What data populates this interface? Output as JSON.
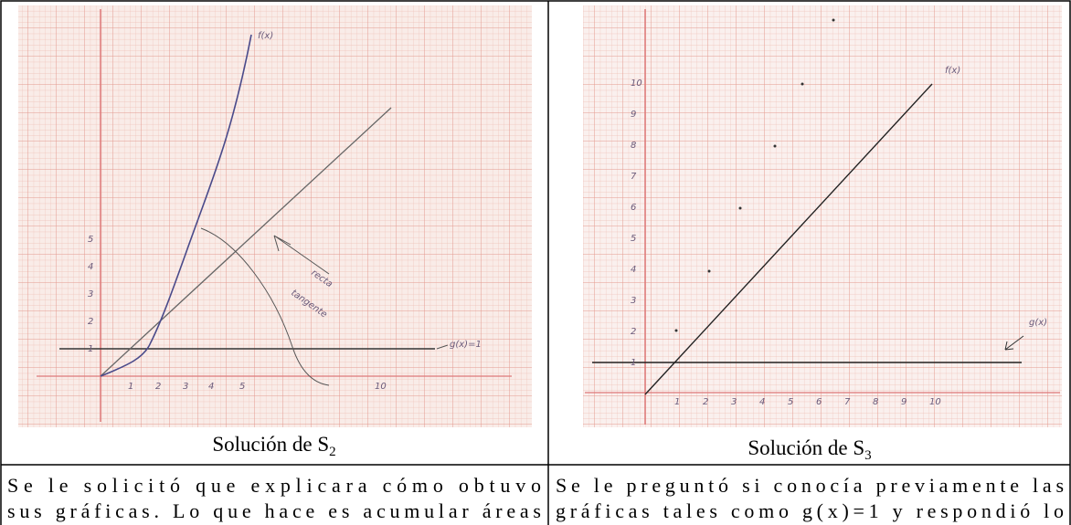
{
  "left": {
    "graph": {
      "curve_label": "f(x)",
      "line_label": "g(x)=1",
      "arrow_label": [
        "recta",
        "tangente"
      ],
      "xticks": [
        "1",
        "2",
        "3",
        "4",
        "5",
        "10"
      ],
      "yticks": [
        "1",
        "2",
        "3",
        "4",
        "5"
      ]
    },
    "caption": {
      "text": "Solución de S",
      "sub": "2"
    },
    "paragraph": [
      "Se le solicitó que explicara cómo obtuvo",
      "sus gráficas. Lo que hace es acumular áreas"
    ]
  },
  "right": {
    "graph": {
      "line_label": "f(x)",
      "const_label": "g(x)",
      "xticks": [
        "1",
        "2",
        "3",
        "4",
        "5",
        "6",
        "7",
        "8",
        "9",
        "10"
      ],
      "yticks": [
        "1",
        "2",
        "3",
        "4",
        "5",
        "6",
        "7",
        "8",
        "9",
        "10"
      ]
    },
    "caption": {
      "text": "Solución de S",
      "sub": "3"
    },
    "paragraph": [
      "Se le preguntó si conocía previamente las",
      "gráficas tales como g(x)=1 y respondió lo"
    ]
  }
}
